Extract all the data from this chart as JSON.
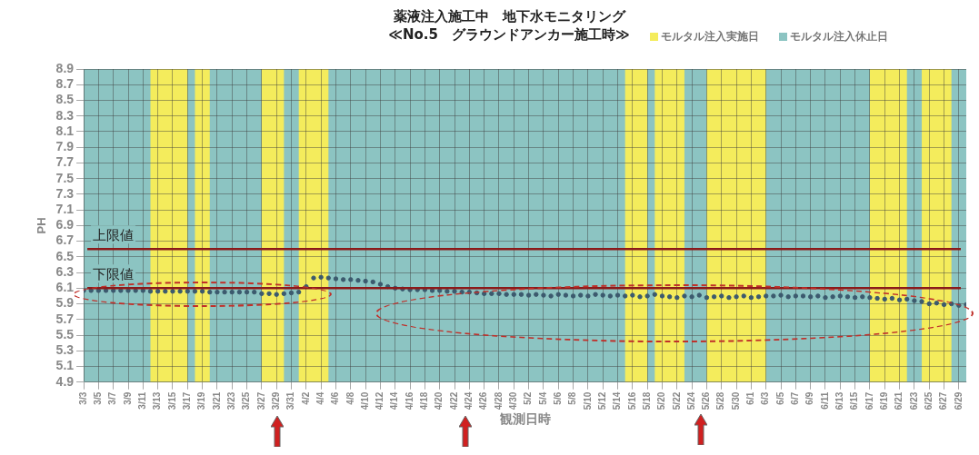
{
  "chart_data": {
    "type": "scatter",
    "title": "薬液注入施工中　地下水モニタリング",
    "subtitle": "≪No.5　グラウンドアンカー施工時≫",
    "xlabel": "観測日時",
    "ylabel": "PH",
    "x": [
      "--03-03",
      "--03-04",
      "--03-05",
      "--03-06",
      "--03-07",
      "--03-08",
      "--03-09",
      "--03-10",
      "--03-11",
      "--03-12",
      "--03-13",
      "--03-14",
      "--03-15",
      "--03-16",
      "--03-17",
      "--03-18",
      "--03-19",
      "--03-20",
      "--03-21",
      "--03-22",
      "--03-23",
      "--03-24",
      "--03-25",
      "--03-26",
      "--03-27",
      "--03-28",
      "--03-29",
      "--03-30",
      "--03-31",
      "--04-01",
      "--04-02",
      "--04-03",
      "--04-04",
      "--04-05",
      "--04-06",
      "--04-07",
      "--04-08",
      "--04-09",
      "--04-10",
      "--04-11",
      "--04-12",
      "--04-13",
      "--04-14",
      "--04-15",
      "--04-16",
      "--04-17",
      "--04-18",
      "--04-19",
      "--04-20",
      "--04-21",
      "--04-22",
      "--04-23",
      "--04-24",
      "--04-25",
      "--04-26",
      "--04-27",
      "--04-28",
      "--04-29",
      "--04-30",
      "--05-01",
      "--05-02",
      "--05-03",
      "--05-04",
      "--05-05",
      "--05-06",
      "--05-07",
      "--05-08",
      "--05-09",
      "--05-10",
      "--05-11",
      "--05-12",
      "--05-13",
      "--05-14",
      "--05-15",
      "--05-16",
      "--05-17",
      "--05-18",
      "--05-19",
      "--05-20",
      "--05-21",
      "--05-22",
      "--05-23",
      "--05-24",
      "--05-25",
      "--05-26",
      "--05-27",
      "--05-28",
      "--05-29",
      "--05-30",
      "--05-31",
      "--06-01",
      "--06-02",
      "--06-03",
      "--06-04",
      "--06-05",
      "--06-06",
      "--06-07",
      "--06-08",
      "--06-09",
      "--06-10",
      "--06-11",
      "--06-12",
      "--06-13",
      "--06-14",
      "--06-15",
      "--06-16",
      "--06-17",
      "--06-18",
      "--06-19",
      "--06-20",
      "--06-21",
      "--06-22",
      "--06-23",
      "--06-24",
      "--06-25",
      "--06-26",
      "--06-27",
      "--06-28",
      "--06-29",
      "--06-30"
    ],
    "series": [
      {
        "color": "#3c5a6e",
        "values": [
          6.07,
          6.07,
          6.07,
          6.07,
          6.07,
          6.07,
          6.07,
          6.07,
          6.07,
          6.06,
          6.06,
          6.06,
          6.06,
          6.06,
          6.06,
          6.06,
          6.06,
          6.05,
          6.05,
          6.05,
          6.05,
          6.05,
          6.05,
          6.05,
          6.03,
          6.03,
          6.02,
          6.03,
          6.04,
          6.05,
          6.12,
          6.23,
          6.24,
          6.23,
          6.22,
          6.21,
          6.21,
          6.2,
          6.19,
          6.18,
          6.15,
          6.12,
          6.1,
          6.09,
          6.08,
          6.08,
          6.08,
          6.07,
          6.07,
          6.06,
          6.06,
          6.05,
          6.05,
          6.04,
          6.03,
          6.03,
          6.03,
          6.02,
          6.02,
          6.02,
          6.01,
          6.02,
          6.01,
          6.0,
          6.02,
          6.01,
          6.0,
          6.01,
          6.0,
          6.02,
          6.01,
          6.0,
          6.01,
          6.0,
          6.01,
          5.99,
          6.0,
          6.02,
          6.0,
          5.99,
          5.98,
          6.0,
          5.99,
          6.01,
          5.98,
          5.99,
          6.0,
          5.98,
          5.99,
          6.0,
          5.98,
          5.99,
          6.0,
          6.0,
          6.01,
          5.99,
          6.0,
          6.0,
          5.99,
          6.0,
          5.98,
          5.99,
          6.0,
          5.99,
          5.98,
          5.99,
          5.98,
          5.97,
          5.96,
          5.97,
          5.95,
          5.96,
          5.94,
          5.93,
          5.9,
          5.91,
          5.89,
          5.9,
          5.88,
          5.89
        ]
      }
    ],
    "ylim": [
      4.9,
      8.9
    ],
    "yticks": [
      4.9,
      5.1,
      5.3,
      5.5,
      5.7,
      5.9,
      6.1,
      6.3,
      6.5,
      6.7,
      6.9,
      7.1,
      7.3,
      7.5,
      7.7,
      7.9,
      8.1,
      8.3,
      8.5,
      8.7,
      8.9
    ],
    "xlim": [
      "--03-03",
      "--06-30"
    ],
    "xticks": [
      {
        "value": "--03-03",
        "label": "3/3"
      },
      {
        "value": "--03-05",
        "label": "3/5"
      },
      {
        "value": "--03-07",
        "label": "3/7"
      },
      {
        "value": "--03-09",
        "label": "3/9"
      },
      {
        "value": "--03-11",
        "label": "3/11"
      },
      {
        "value": "--03-13",
        "label": "3/13"
      },
      {
        "value": "--03-15",
        "label": "3/15"
      },
      {
        "value": "--03-17",
        "label": "3/17"
      },
      {
        "value": "--03-19",
        "label": "3/19"
      },
      {
        "value": "--03-21",
        "label": "3/21"
      },
      {
        "value": "--03-23",
        "label": "3/23"
      },
      {
        "value": "--03-25",
        "label": "3/25"
      },
      {
        "value": "--03-27",
        "label": "3/27"
      },
      {
        "value": "--03-29",
        "label": "3/29"
      },
      {
        "value": "--03-31",
        "label": "3/31"
      },
      {
        "value": "--04-02",
        "label": "4/2"
      },
      {
        "value": "--04-04",
        "label": "4/4"
      },
      {
        "value": "--04-06",
        "label": "4/6"
      },
      {
        "value": "--04-08",
        "label": "4/8"
      },
      {
        "value": "--04-10",
        "label": "4/10"
      },
      {
        "value": "--04-12",
        "label": "4/12"
      },
      {
        "value": "--04-14",
        "label": "4/14"
      },
      {
        "value": "--04-16",
        "label": "4/16"
      },
      {
        "value": "--04-18",
        "label": "4/18"
      },
      {
        "value": "--04-20",
        "label": "4/20"
      },
      {
        "value": "--04-22",
        "label": "4/22"
      },
      {
        "value": "--04-24",
        "label": "4/24"
      },
      {
        "value": "--04-26",
        "label": "4/26"
      },
      {
        "value": "--04-28",
        "label": "4/28"
      },
      {
        "value": "--04-30",
        "label": "4/30"
      },
      {
        "value": "--05-02",
        "label": "5/2"
      },
      {
        "value": "--05-04",
        "label": "5/4"
      },
      {
        "value": "--05-06",
        "label": "5/6"
      },
      {
        "value": "--05-08",
        "label": "5/8"
      },
      {
        "value": "--05-10",
        "label": "5/10"
      },
      {
        "value": "--05-12",
        "label": "5/12"
      },
      {
        "value": "--05-14",
        "label": "5/14"
      },
      {
        "value": "--05-16",
        "label": "5/16"
      },
      {
        "value": "--05-18",
        "label": "5/18"
      },
      {
        "value": "--05-20",
        "label": "5/20"
      },
      {
        "value": "--05-22",
        "label": "5/22"
      },
      {
        "value": "--05-24",
        "label": "5/24"
      },
      {
        "value": "--05-26",
        "label": "5/26"
      },
      {
        "value": "--05-28",
        "label": "5/28"
      },
      {
        "value": "--05-30",
        "label": "5/30"
      },
      {
        "value": "--06-01",
        "label": "6/1"
      },
      {
        "value": "--06-03",
        "label": "6/3"
      },
      {
        "value": "--06-05",
        "label": "6/5"
      },
      {
        "value": "--06-07",
        "label": "6/7"
      },
      {
        "value": "--06-09",
        "label": "6/9"
      },
      {
        "value": "--06-11",
        "label": "6/11"
      },
      {
        "value": "--06-13",
        "label": "6/13"
      },
      {
        "value": "--06-15",
        "label": "6/15"
      },
      {
        "value": "--06-17",
        "label": "6/17"
      },
      {
        "value": "--06-19",
        "label": "6/19"
      },
      {
        "value": "--06-21",
        "label": "6/21"
      },
      {
        "value": "--06-23",
        "label": "6/23"
      },
      {
        "value": "--06-25",
        "label": "6/25"
      },
      {
        "value": "--06-27",
        "label": "6/27"
      },
      {
        "value": "--06-29",
        "label": "6/29"
      }
    ],
    "bands": [
      {
        "axis": "x",
        "from": "--03-03",
        "to": "--06-30",
        "label": "モルタル注入休止日",
        "color": "#8cc4c2"
      },
      {
        "axis": "x",
        "from": "--03-12",
        "to": "--03-17",
        "label": "モルタル注入実施日",
        "color": "#f4ec5c"
      },
      {
        "axis": "x",
        "from": "--03-18",
        "to": "--03-20",
        "color": "#f4ec5c"
      },
      {
        "axis": "x",
        "from": "--03-27",
        "to": "--03-30",
        "color": "#f4ec5c"
      },
      {
        "axis": "x",
        "from": "--04-01",
        "to": "--04-05",
        "color": "#f4ec5c"
      },
      {
        "axis": "x",
        "from": "--05-15",
        "to": "--05-18",
        "color": "#f4ec5c"
      },
      {
        "axis": "x",
        "from": "--05-19",
        "to": "--05-23",
        "color": "#f4ec5c"
      },
      {
        "axis": "x",
        "from": "--05-26",
        "to": "--06-03",
        "color": "#f4ec5c"
      },
      {
        "axis": "x",
        "from": "--06-17",
        "to": "--06-22",
        "color": "#f4ec5c"
      },
      {
        "axis": "x",
        "from": "--06-24",
        "to": "--06-28",
        "color": "#f4ec5c"
      }
    ],
    "ref_lines": [
      {
        "axis": "y",
        "value": 6.6,
        "label": "上限値",
        "color": "#8b1a1a"
      },
      {
        "axis": "y",
        "value": 6.1,
        "label": "下限値",
        "color": "#8b1a1a"
      }
    ],
    "grid": true,
    "legend": "top right",
    "marker": "circle"
  }
}
